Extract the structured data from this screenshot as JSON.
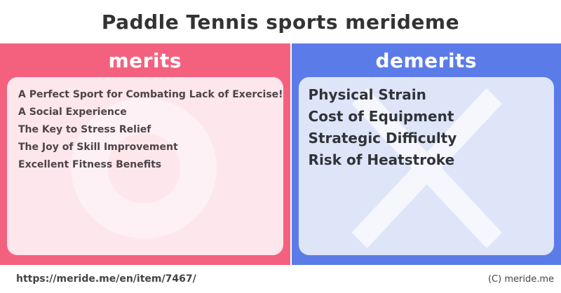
{
  "page": {
    "title": "Paddle Tennis sports merideme"
  },
  "merits": {
    "header": "merits",
    "items": [
      "A Perfect Sport for Combating Lack of Exercise!",
      "A Social Experience",
      "The Key to Stress Relief",
      "The Joy of Skill Improvement",
      "Excellent Fitness Benefits"
    ]
  },
  "demerits": {
    "header": "demerits",
    "items": [
      "Physical Strain",
      "Cost of Equipment",
      "Strategic Difficulty",
      "Risk of Heatstroke"
    ]
  },
  "footer": {
    "url": "https://meride.me/en/item/7467/",
    "copyright": "(C) meride.me"
  },
  "colors": {
    "merits_accent": "#f4617e",
    "demerits_accent": "#5b7ce8",
    "merits_card_bg": "#fde6ec",
    "demerits_card_bg": "#dfe5f8",
    "title_text": "#333333",
    "header_text": "#ffffff",
    "o_mark": "#fdf1f5",
    "x_mark": "#f5f7fd"
  }
}
